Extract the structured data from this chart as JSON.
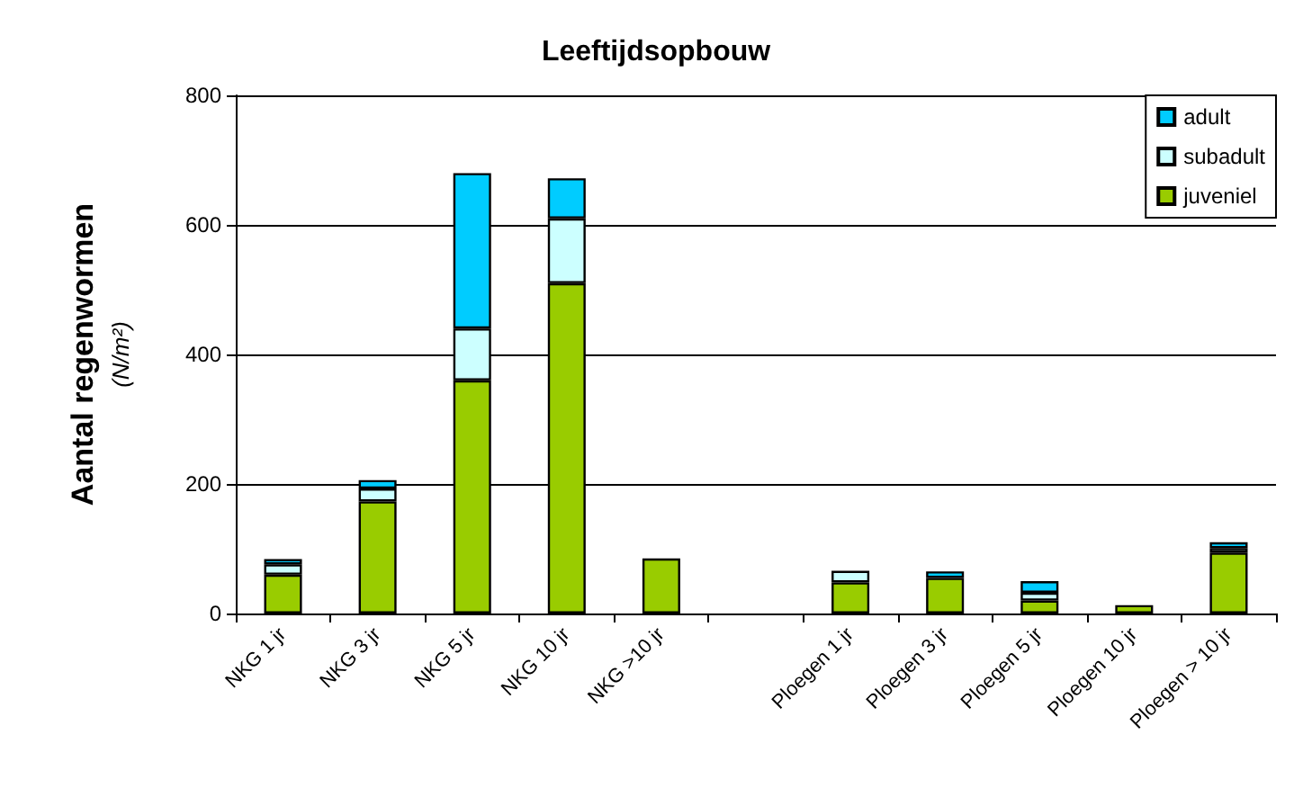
{
  "chart_data": {
    "type": "bar",
    "title": "Leeftijdsopbouw",
    "ylabel": "Aantal regenwormen\n(N/m²)",
    "categories": [
      "NKG 1 jr",
      "NKG 3 jr",
      "NKG 5 jr",
      "NKG 10 jr",
      "NKG >10 jr",
      null,
      "Ploegen 1 jr",
      "Ploegen 3 jr",
      "Ploegen 5 jr",
      "Ploegen 10 jr",
      "Ploegen > 10 jr"
    ],
    "stacked": true,
    "series": [
      {
        "name": "juveniel",
        "color": "#99cc00",
        "values": [
          60,
          173,
          360,
          510,
          85,
          null,
          48,
          55,
          20,
          13,
          94
        ]
      },
      {
        "name": "subadult",
        "color": "#ccffff",
        "values": [
          16,
          20,
          80,
          100,
          null,
          null,
          18,
          null,
          12,
          null,
          7
        ]
      },
      {
        "name": "adult",
        "color": "#00ccff",
        "values": [
          8,
          13,
          240,
          62,
          null,
          null,
          null,
          10,
          18,
          null,
          9
        ]
      }
    ],
    "ylim": [
      0,
      800
    ],
    "yticks": [
      0,
      200,
      400,
      600,
      800
    ],
    "grid": "y",
    "legend": "top right"
  }
}
